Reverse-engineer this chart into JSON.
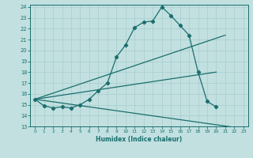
{
  "xlabel": "Humidex (Indice chaleur)",
  "bg_color": "#c2e0e0",
  "line_color": "#1a6e6e",
  "grid_color": "#a8cccc",
  "xlim": [
    -0.5,
    23.5
  ],
  "ylim": [
    13,
    24.2
  ],
  "xticks": [
    0,
    1,
    2,
    3,
    4,
    5,
    6,
    7,
    8,
    9,
    10,
    11,
    12,
    13,
    14,
    15,
    16,
    17,
    18,
    19,
    20,
    21,
    22,
    23
  ],
  "yticks": [
    13,
    14,
    15,
    16,
    17,
    18,
    19,
    20,
    21,
    22,
    23,
    24
  ],
  "curve_x": [
    0,
    1,
    2,
    3,
    4,
    5,
    6,
    7,
    8,
    9,
    10,
    11,
    12,
    13,
    14,
    15,
    16,
    17,
    18,
    19,
    20
  ],
  "curve_y": [
    15.5,
    14.9,
    14.7,
    14.8,
    14.7,
    15.0,
    15.5,
    16.3,
    17.0,
    19.4,
    20.5,
    22.1,
    22.6,
    22.7,
    24.0,
    23.2,
    22.3,
    21.4,
    18.0,
    15.3,
    14.8
  ],
  "line1_x": [
    0,
    21
  ],
  "line1_y": [
    15.5,
    21.4
  ],
  "line2_x": [
    0,
    23
  ],
  "line2_y": [
    15.5,
    12.8
  ],
  "line3_x": [
    0,
    20
  ],
  "line3_y": [
    15.5,
    18.0
  ]
}
